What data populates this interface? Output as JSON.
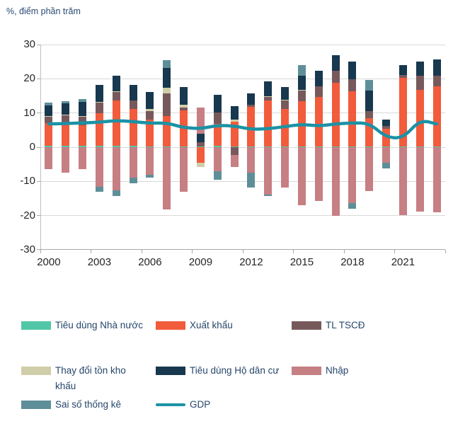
{
  "title": "%, điểm phần trăm",
  "colors": {
    "government": "#52C7A8",
    "exports": "#F25B3B",
    "gfcf": "#77595C",
    "inventories": "#D0CEA8",
    "household": "#17384E",
    "imports": "#C67F83",
    "stat_error": "#5E8F99",
    "gdp_line": "#1C92A5",
    "grid": "#d8d8d8",
    "axis_text": "#262626",
    "legend_text": "#26466B"
  },
  "chart_data": {
    "type": "bar",
    "stacked": true,
    "title": "%, điểm phần trăm",
    "grid": true,
    "legend_position": "bottom",
    "ylim": [
      -30,
      30
    ],
    "ytick_step": 10,
    "categories": [
      2000,
      2001,
      2002,
      2003,
      2004,
      2005,
      2006,
      2007,
      2008,
      2009,
      2010,
      2011,
      2012,
      2013,
      2014,
      2015,
      2016,
      2017,
      2018,
      2019,
      2020,
      2021,
      2022,
      2023
    ],
    "xtick_labels": [
      "2000",
      "2003",
      "2006",
      "2009",
      "2012",
      "2015",
      "2018",
      "2021"
    ],
    "series": [
      {
        "name": "Tiêu dùng Nhà nước",
        "color": "#52C7A8",
        "values": [
          0.4,
          0.4,
          0.4,
          0.4,
          0.4,
          0.4,
          0.3,
          0.3,
          0.3,
          0.3,
          0.5,
          0.3,
          0.3,
          0.3,
          0.3,
          0.3,
          0.3,
          0.3,
          0.3,
          0.3,
          0.3,
          0.3,
          0.3,
          0.3
        ]
      },
      {
        "name": "Xuất khẩu",
        "color": "#F25B3B",
        "values": [
          6.6,
          6.8,
          6.1,
          9.5,
          13.3,
          10.8,
          7.8,
          8.9,
          10.4,
          -4.6,
          6.4,
          7.1,
          11.5,
          13.4,
          10.9,
          13.1,
          14.4,
          18.5,
          16.0,
          8.2,
          5.0,
          19.9,
          16.5,
          17.4
        ]
      },
      {
        "name": "TL TSCĐ",
        "color": "#77595C",
        "values": [
          2.0,
          2.2,
          2.4,
          3.1,
          2.5,
          2.5,
          2.4,
          6.6,
          0.8,
          1.2,
          3.3,
          -2.3,
          0.7,
          1.0,
          2.4,
          3.1,
          3.1,
          3.5,
          3.6,
          2.1,
          1.0,
          1.0,
          4.1,
          3.1
        ]
      },
      {
        "name": "Thay đổi tồn kho khấu",
        "color": "#D0CEA8",
        "values": [
          0.2,
          0.2,
          0.3,
          0.2,
          0.2,
          0,
          0.7,
          1.5,
          1.0,
          -1.1,
          0,
          0.6,
          0,
          0.3,
          0.2,
          0.3,
          0,
          0,
          0,
          0,
          0,
          0,
          0,
          0
        ]
      },
      {
        "name": "Tiêu dùng Hộ dân cư",
        "color": "#17384E",
        "values": [
          3.1,
          3.3,
          4.0,
          5.0,
          4.6,
          4.5,
          4.9,
          5.9,
          5.0,
          2.4,
          5.2,
          4.1,
          3.2,
          4.2,
          3.7,
          4.1,
          4.5,
          4.5,
          5.1,
          5.9,
          1.8,
          2.8,
          4.1,
          4.9
        ]
      },
      {
        "name": "Nhập",
        "color": "#C67F83",
        "values": [
          -6.4,
          -7.4,
          -6.4,
          -11.5,
          -12.6,
          -8.8,
          -8.0,
          -18.2,
          -13.0,
          7.6,
          -7.0,
          -3.5,
          -7.4,
          -13.9,
          -11.8,
          -17.0,
          -15.7,
          -20.1,
          -16.3,
          -12.9,
          -4.6,
          -19.8,
          -18.8,
          -19.1
        ]
      },
      {
        "name": "Sai số thống kê",
        "color": "#5E8F99",
        "values": [
          0.8,
          0.6,
          0.9,
          -1.5,
          -1.7,
          -1.7,
          -0.8,
          2.3,
          0,
          0,
          -2.5,
          0,
          -4.3,
          -0.4,
          0,
          3.1,
          0,
          0,
          -1.8,
          3.1,
          -1.7,
          0,
          0,
          0
        ]
      }
    ],
    "line_series": {
      "name": "GDP",
      "color": "#1C92A5",
      "values": [
        6.8,
        6.9,
        7.1,
        7.3,
        7.8,
        7.5,
        7.0,
        7.1,
        5.7,
        5.4,
        6.4,
        6.2,
        5.2,
        5.4,
        6.0,
        6.7,
        6.2,
        6.8,
        7.1,
        7.0,
        2.9,
        2.6,
        8.0,
        6.8
      ]
    }
  },
  "legend": {
    "items": [
      {
        "label": "Tiêu dùng Nhà nước",
        "lines": [
          "Tiêu dùng Nhà nước"
        ],
        "color": "#52C7A8",
        "type": "box",
        "row": 0,
        "col": 0
      },
      {
        "label": "Xuất khẩu",
        "lines": [
          "Xuất khẩu"
        ],
        "color": "#F25B3B",
        "type": "box",
        "row": 0,
        "col": 1
      },
      {
        "label": "TL TSCĐ",
        "lines": [
          "TL TSCĐ"
        ],
        "color": "#77595C",
        "type": "box",
        "row": 0,
        "col": 2
      },
      {
        "label": "Thay đổi tồn kho khấu",
        "lines": [
          "Thay đổi tồn kho",
          "khấu"
        ],
        "color": "#D0CEA8",
        "type": "box",
        "row": 1,
        "col": 0
      },
      {
        "label": "Tiêu dùng Hộ dân cư",
        "lines": [
          "Tiêu dùng Hộ dân cư"
        ],
        "color": "#17384E",
        "type": "box",
        "row": 1,
        "col": 1
      },
      {
        "label": "Nhập",
        "lines": [
          "Nhập"
        ],
        "color": "#C67F83",
        "type": "box",
        "row": 1,
        "col": 2
      },
      {
        "label": "Sai số thống kê",
        "lines": [
          "Sai số thống kê"
        ],
        "color": "#5E8F99",
        "type": "box",
        "row": 2,
        "col": 0
      },
      {
        "label": "GDP",
        "lines": [
          "GDP"
        ],
        "color": "#1C92A5",
        "type": "line",
        "row": 2,
        "col": 1
      }
    ]
  }
}
